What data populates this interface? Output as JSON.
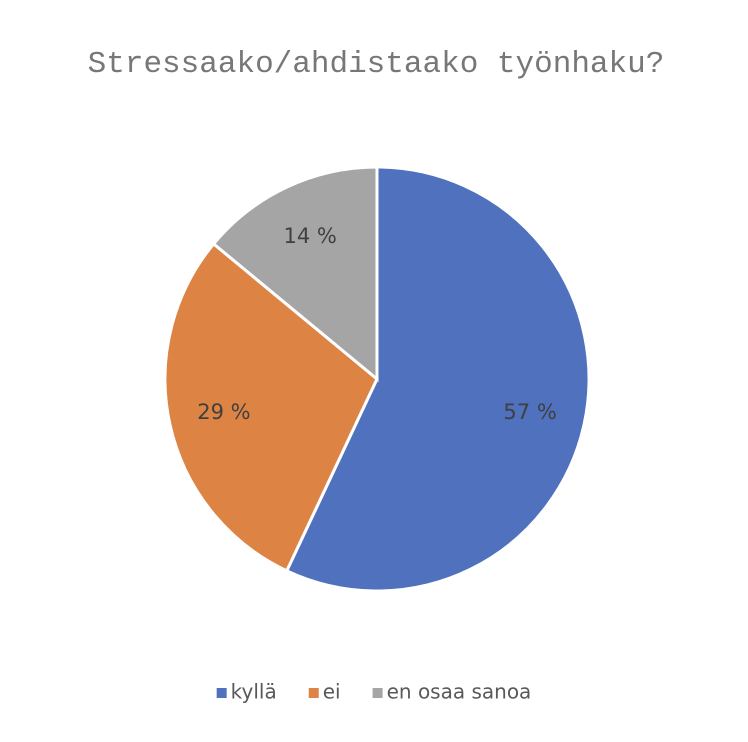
{
  "chart_data": {
    "type": "pie",
    "title": "Stressaako/ahdistaako työnhaku?",
    "categories": [
      "kyllä",
      "ei",
      "en osaa sanoa"
    ],
    "values": [
      57,
      29,
      14
    ],
    "value_labels": [
      "57 %",
      "29 %",
      "14 %"
    ],
    "colors": [
      "#4f71be",
      "#dd8344",
      "#a5a5a5"
    ],
    "legend": "bottom"
  }
}
